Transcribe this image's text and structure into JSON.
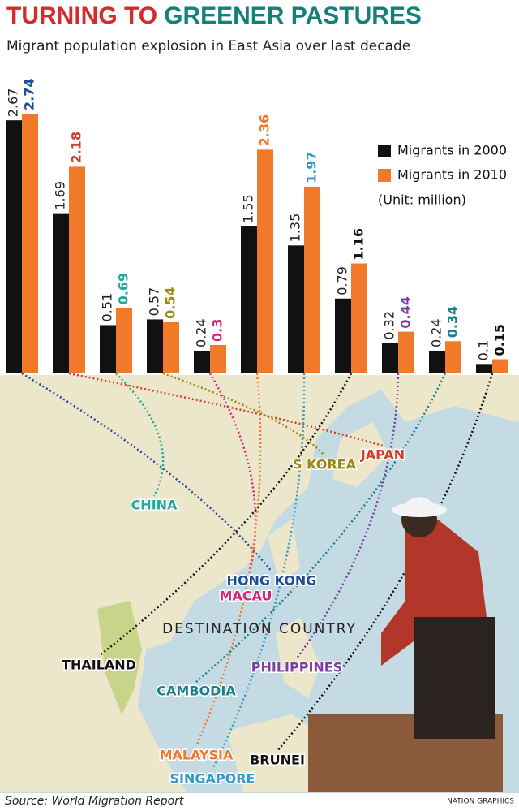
{
  "chart_data": {
    "type": "bar",
    "title_parts": [
      "TURNING TO",
      "GREENER PASTURES"
    ],
    "subtitle": "Migrant population explosion in East Asia over last decade",
    "categories": [
      "HONG KONG",
      "JAPAN",
      "CHINA",
      "S KOREA",
      "MACAU",
      "MALAYSIA",
      "SINGAPORE",
      "THAILAND",
      "PHILIPPINES",
      "CAMBODIA",
      "BRUNEI"
    ],
    "category_colors": [
      "#1f4e96",
      "#d0402a",
      "#1fa99a",
      "#9a8a12",
      "#d6237f",
      "#f07a2a",
      "#3399cc",
      "#111111",
      "#7b3fa0",
      "#1b7f8e",
      "#111111"
    ],
    "series": [
      {
        "name": "Migrants in 2000",
        "color": "#111111",
        "values": [
          2.67,
          1.69,
          0.51,
          0.57,
          0.24,
          1.55,
          1.35,
          0.79,
          0.32,
          0.24,
          0.1
        ]
      },
      {
        "name": "Migrants in 2010",
        "color": "#f07a2a",
        "values": [
          2.74,
          2.18,
          0.69,
          0.54,
          0.3,
          2.36,
          1.97,
          1.16,
          0.44,
          0.34,
          0.15
        ]
      }
    ],
    "unit_note": "(Unit: million)",
    "map_title": "DESTINATION COUNTRY",
    "source": "Source: World Migration Report",
    "credit": "NATION GRAPHICS"
  }
}
